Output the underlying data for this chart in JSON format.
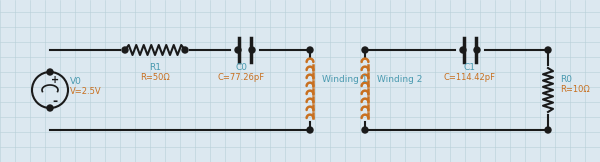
{
  "bg_color": "#dce8f0",
  "grid_color": "#b8cfd8",
  "wire_color": "#1a1a1a",
  "component_color": "#1a1a1a",
  "inductor_color": "#c87020",
  "label_color": "#4a9ab0",
  "value_color": "#c87020",
  "dot_color": "#1a1a1a",
  "V0_label": "V0",
  "V0_value": "V=2.5V",
  "R1_label": "R1",
  "R1_value": "R=50Ω",
  "C0_label": "C0",
  "C0_value": "C=77.26pF",
  "W1_label": "Winding 1",
  "W2_label": "Winding 2",
  "C1_label": "C1",
  "C1_value": "C=114.42pF",
  "R0_label": "R0",
  "R0_value": "R=10Ω",
  "figwidth": 6.0,
  "figheight": 1.62
}
